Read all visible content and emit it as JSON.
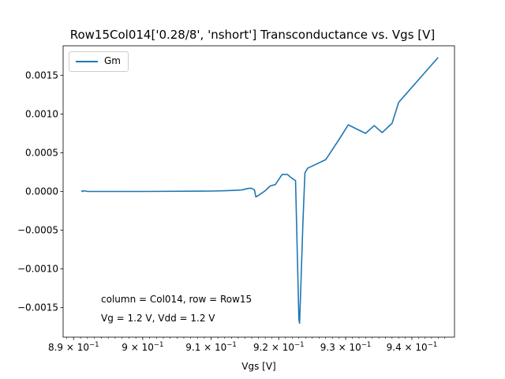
{
  "chart_data": {
    "type": "line",
    "title": "Row15Col014['0.28/8', 'nshort'] Transconductance vs. Vgs [V]",
    "xlabel": "Vgs [V]",
    "ylabel": "",
    "xscale": "log",
    "xlim": [
      0.8885,
      0.9465
    ],
    "ylim": [
      -0.00188,
      0.00188
    ],
    "yticks": [
      -0.0015,
      -0.001,
      -0.0005,
      0.0,
      0.0005,
      0.001,
      0.0015
    ],
    "ytick_labels": [
      "−0.0015",
      "−0.0010",
      "−0.0005",
      "0.0000",
      "0.0005",
      "0.0010",
      "0.0015"
    ],
    "xticks": [
      {
        "value": 0.89,
        "mantissa": "8.9",
        "prefix": "8.9 × 10"
      },
      {
        "value": 0.9,
        "mantissa": "9",
        "prefix": "9 × 10"
      },
      {
        "value": 0.91,
        "mantissa": "9.1",
        "prefix": "9.1 × 10"
      },
      {
        "value": 0.92,
        "mantissa": "9.2",
        "prefix": "9.2 × 10"
      },
      {
        "value": 0.93,
        "mantissa": "9.3",
        "prefix": "9.3 × 10"
      },
      {
        "value": 0.94,
        "mantissa": "9.4",
        "prefix": "9.4 × 10"
      }
    ],
    "xtick_exponent": "−1",
    "legend": {
      "position": "upper-left",
      "entries": [
        "Gm"
      ]
    },
    "grid": false,
    "series": [
      {
        "name": "Gm",
        "color": "#1f77b4",
        "x": [
          0.8911,
          0.8913,
          0.8915,
          0.892,
          0.9,
          0.91,
          0.912,
          0.9135,
          0.9145,
          0.915,
          0.9155,
          0.916,
          0.9164,
          0.9166,
          0.917,
          0.918,
          0.9187,
          0.9195,
          0.9205,
          0.9213,
          0.9218,
          0.9225,
          0.923,
          0.9231,
          0.9233,
          0.9236,
          0.9239,
          0.9243,
          0.927,
          0.929,
          0.9304,
          0.9318,
          0.933,
          0.9343,
          0.9355,
          0.937,
          0.938,
          0.944
        ],
        "y": [
          1e-05,
          0.0,
          1e-05,
          0.0,
          0.0,
          5e-06,
          1e-05,
          1.5e-05,
          2e-05,
          3e-05,
          4e-05,
          4e-05,
          2e-05,
          -7e-05,
          -5e-05,
          1e-05,
          7e-05,
          9e-05,
          0.00022,
          0.00022,
          0.00018,
          0.00014,
          -0.00165,
          -0.0017,
          -0.0012,
          -0.0004,
          0.00024,
          0.0003,
          0.00041,
          0.00067,
          0.00086,
          0.0008,
          0.00075,
          0.00085,
          0.00076,
          0.00088,
          0.00115,
          0.00173
        ]
      }
    ],
    "annotations": [
      "column = Col014, row = Row15",
      "Vg = 1.2 V, Vdd = 1.2 V"
    ]
  }
}
